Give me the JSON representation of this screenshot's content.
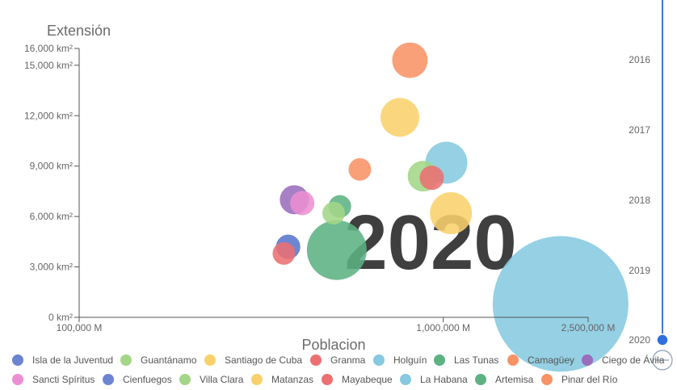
{
  "chart_data": {
    "type": "scatter",
    "title": "",
    "xlabel": "Poblacion",
    "ylabel": "Extensión",
    "x_scale": "log",
    "xlim": [
      100000,
      2500000
    ],
    "ylim": [
      0,
      16000
    ],
    "x_ticks": [
      {
        "value": 100000,
        "label": "100,000 M"
      },
      {
        "value": 1000000,
        "label": "1,000,000 M"
      },
      {
        "value": 2500000,
        "label": "2,500,000 M"
      }
    ],
    "y_ticks": [
      {
        "value": 0,
        "label": "0 km²"
      },
      {
        "value": 3000,
        "label": "3,000 km²"
      },
      {
        "value": 6000,
        "label": "6,000 km²"
      },
      {
        "value": 9000,
        "label": "9,000 km²"
      },
      {
        "value": 12000,
        "label": "12,000 km²"
      },
      {
        "value": 15000,
        "label": "15,000 km²"
      },
      {
        "value": 16000,
        "label": "16,000 km²"
      }
    ],
    "year_watermark": "2020",
    "timeline": {
      "years": [
        "2016",
        "2017",
        "2018",
        "2019",
        "2020"
      ],
      "current": "2020"
    },
    "legend_position": "bottom",
    "series": [
      {
        "name": "Isla de la Juventud",
        "color": "#6c84d1",
        "x": 375000,
        "y": 4200,
        "size": 15
      },
      {
        "name": "Guantánamo",
        "color": "#a3d686",
        "x": 880000,
        "y": 8400,
        "size": 19
      },
      {
        "name": "Santiago de Cuba",
        "color": "#f9d16c",
        "x": 1050000,
        "y": 6200,
        "size": 26
      },
      {
        "name": "Granma",
        "color": "#ec7072",
        "x": 930000,
        "y": 8300,
        "size": 15
      },
      {
        "name": "Holguín",
        "color": "#86c9e0",
        "x": 1020000,
        "y": 9200,
        "size": 26
      },
      {
        "name": "Las Tunas",
        "color": "#5db284",
        "x": 520000,
        "y": 6600,
        "size": 14
      },
      {
        "name": "Camagüey",
        "color": "#f89366",
        "x": 590000,
        "y": 8800,
        "size": 14
      },
      {
        "name": "Ciego de Ávila",
        "color": "#9b6dbd",
        "x": 390000,
        "y": 7000,
        "size": 18
      },
      {
        "name": "Sancti Spíritus",
        "color": "#ec8fd2",
        "x": 410000,
        "y": 6800,
        "size": 15
      },
      {
        "name": "Cienfuegos",
        "color": "#6c84d1",
        "x": 375000,
        "y": 4200,
        "size": 15
      },
      {
        "name": "Villa Clara",
        "color": "#a3d686",
        "x": 500000,
        "y": 6200,
        "size": 14
      },
      {
        "name": "Matanzas",
        "color": "#f9d16c",
        "x": 760000,
        "y": 11900,
        "size": 24
      },
      {
        "name": "Mayabeque",
        "color": "#ec7072",
        "x": 365000,
        "y": 3800,
        "size": 14
      },
      {
        "name": "La Habana",
        "color": "#86c9e0",
        "x": 2100000,
        "y": 800,
        "size": 84
      },
      {
        "name": "Artemisa",
        "color": "#5db284",
        "x": 510000,
        "y": 4000,
        "size": 37
      },
      {
        "name": "Pinar del Río",
        "color": "#f89366",
        "x": 810000,
        "y": 15300,
        "size": 22
      }
    ]
  }
}
